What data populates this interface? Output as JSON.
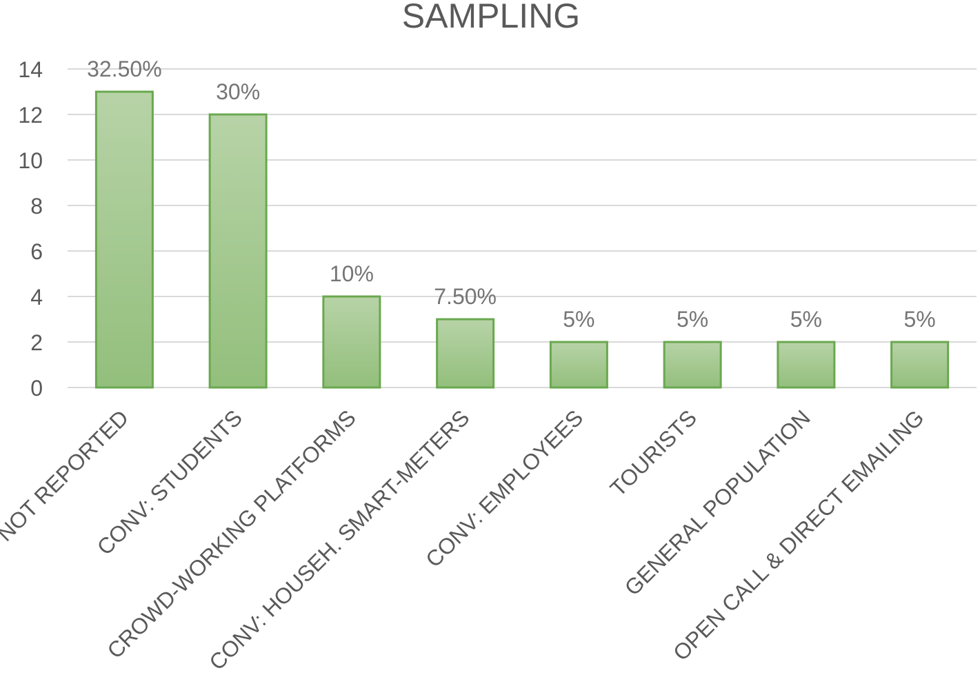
{
  "chart_data": {
    "type": "bar",
    "title": "SAMPLING",
    "categories": [
      "NOT REPORTED",
      "CONV: STUDENTS",
      "CROWD-WORKING PLATFORMS",
      "CONV: HOUSEH. SMART-METERS",
      "CONV: EMPLOYEES",
      "TOURISTS",
      "GENERAL POPULATION",
      "OPEN CALL & DIRECT EMAILING"
    ],
    "values": [
      13,
      12,
      4,
      3,
      2,
      2,
      2,
      2
    ],
    "data_labels": [
      "32.50%",
      "30%",
      "10%",
      "7.50%",
      "5%",
      "5%",
      "5%",
      "5%"
    ],
    "ylim": [
      0,
      14
    ],
    "yticks": [
      0,
      2,
      4,
      6,
      8,
      10,
      12,
      14
    ],
    "xlabel": "",
    "ylabel": "",
    "grid": true,
    "legend": "none",
    "colors": {
      "bar_top": "#b7d3a7",
      "bar_bottom": "#93bf7c",
      "bar_border": "#6aa84f"
    }
  }
}
